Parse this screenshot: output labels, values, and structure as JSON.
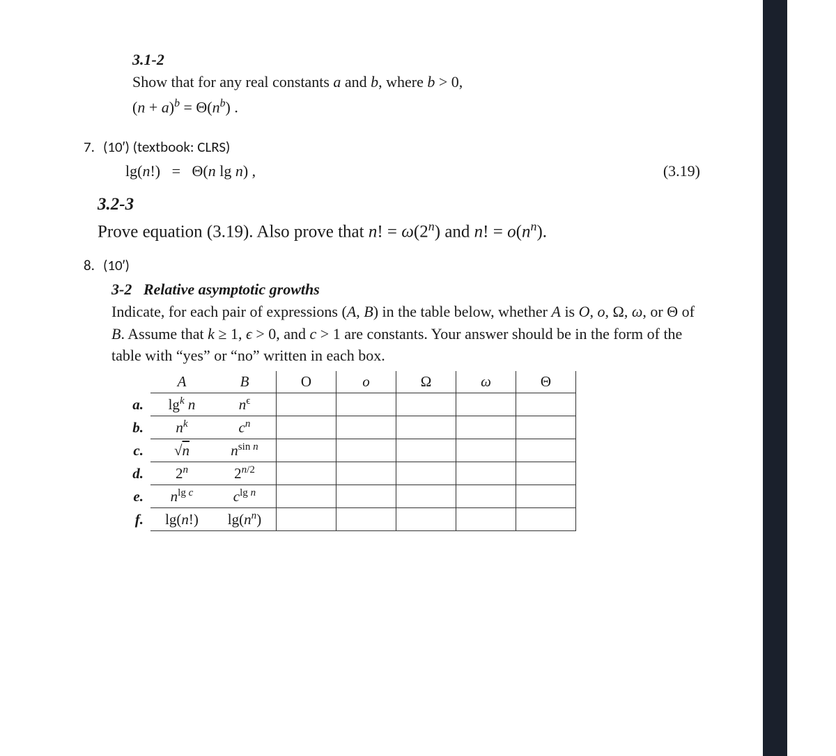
{
  "sec312": {
    "label": "3.1-2",
    "text": "Show that for any real constants a and b, where b > 0,",
    "eq": "(n + a)^b = Θ(n^b) ."
  },
  "q7": {
    "num": "7.",
    "pts": "(10′) (textbook: CLRS)",
    "eq_left": "lg(n!)   =   Θ(n lg n) ,",
    "eq_num": "(3.19)"
  },
  "sec323": {
    "label": "3.2-3",
    "line": "Prove equation (3.19). Also prove that n! = ω(2ⁿ) and n! = o(nⁿ)."
  },
  "q8": {
    "num": "8.",
    "pts": "(10′)"
  },
  "p32": {
    "label": "3-2",
    "title": "Relative asymptotic growths",
    "para_html": "Indicate, for each pair of expressions (A, B) in the table below, whether A is O, o, Ω, ω, or Θ of B. Assume that k ≥ 1, ϵ > 0, and c > 1 are constants. Your answer should be in the form of the table with “yes” or “no” written in each box."
  },
  "table": {
    "header": {
      "A": "A",
      "B": "B",
      "cols": [
        "O",
        "o",
        "Ω",
        "ω",
        "Θ"
      ]
    },
    "rows": [
      {
        "lab": "a.",
        "A_html": "lg<sup class='sup'><i>k</i></sup> <i>n</i>",
        "B_html": "<i>n</i><sup class='sup'>ϵ</sup>"
      },
      {
        "lab": "b.",
        "A_html": "<i>n</i><sup class='sup'><i>k</i></sup>",
        "B_html": "<i>c</i><sup class='sup'><i>n</i></sup>"
      },
      {
        "lab": "c.",
        "A_html": "√<span style='text-decoration:overline;'><i>n</i></span>",
        "B_html": "<i>n</i><sup class='sup'>sin <i>n</i></sup>"
      },
      {
        "lab": "d.",
        "A_html": "2<sup class='sup'><i>n</i></sup>",
        "B_html": "2<sup class='sup'><i>n</i>/2</sup>"
      },
      {
        "lab": "e.",
        "A_html": "<i>n</i><sup class='sup'>lg <i>c</i></sup>",
        "B_html": "<i>c</i><sup class='sup'>lg <i>n</i></sup>"
      },
      {
        "lab": "f.",
        "A_html": "lg(<i>n</i>!)",
        "B_html": "lg(<i>n</i><sup class='sup'><i>n</i></sup>)"
      }
    ]
  },
  "colors": {
    "text": "#1a1a1a",
    "rule": "#333333",
    "right_margin": "#1a202c",
    "background": "#ffffff"
  },
  "fonts": {
    "body": "Times New Roman",
    "question_label": "Calibri",
    "body_size_pt": 17,
    "big_size_pt": 19
  }
}
